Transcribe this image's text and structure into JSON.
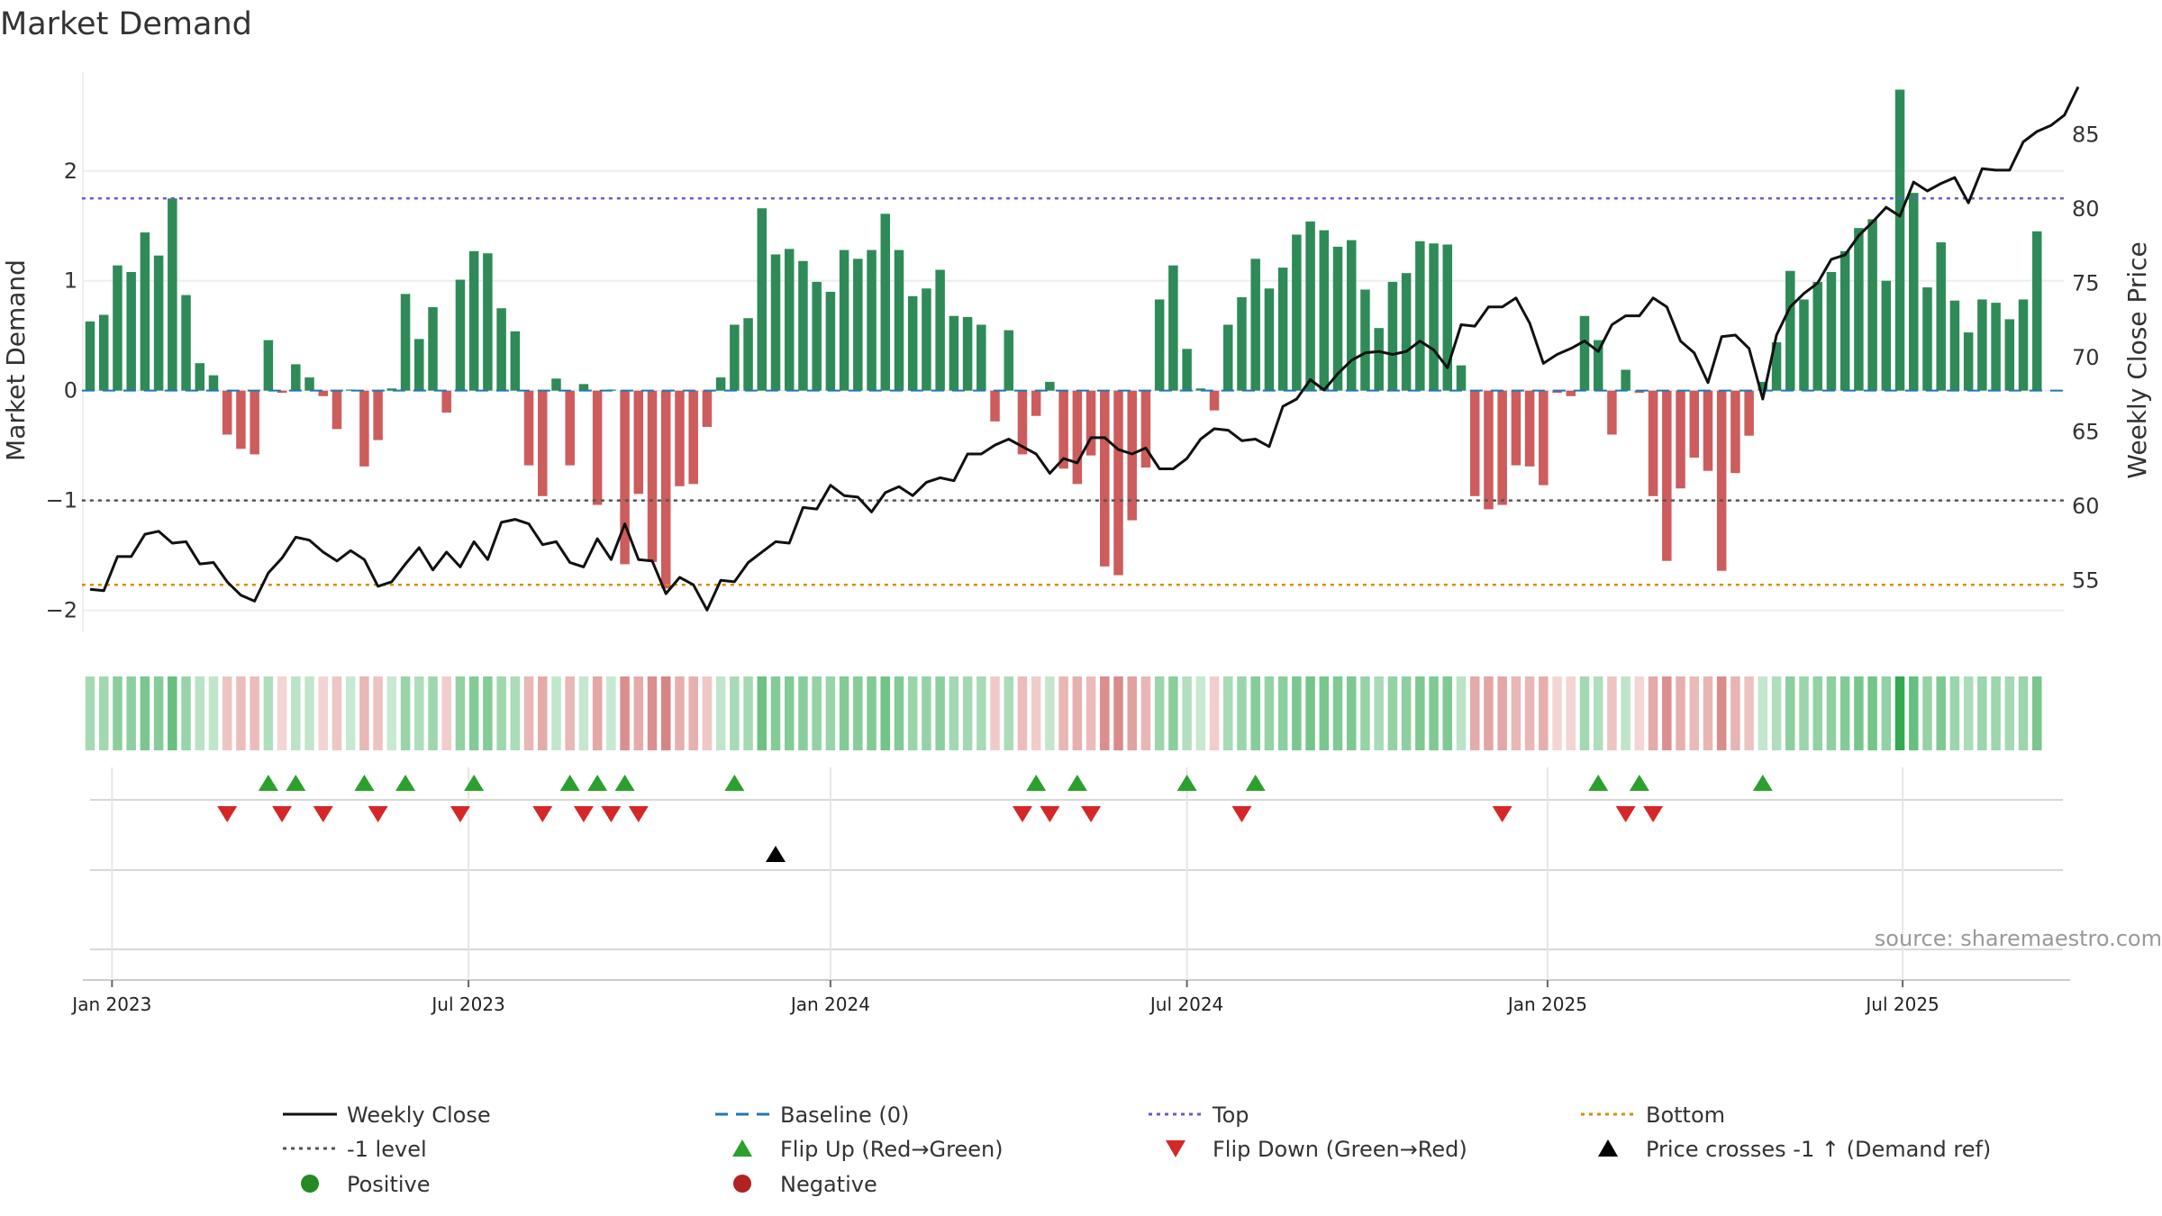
{
  "chart_data": {
    "type": "bar",
    "title": "Market Demand",
    "ylabel_left": "Market Demand",
    "ylabel_right": "Weekly Close Price",
    "source": "source: sharemaestro.com",
    "ylim_left": [
      -2.2,
      2.9
    ],
    "ylim_right": [
      51.5,
      89.2
    ],
    "yticks_left": [
      "−2",
      "−1",
      "0",
      "1",
      "2"
    ],
    "yticks_left_values": [
      -2,
      -1,
      0,
      1,
      2
    ],
    "yticks_right": [
      "55",
      "60",
      "65",
      "70",
      "75",
      "80",
      "85"
    ],
    "yticks_right_values": [
      55,
      60,
      65,
      70,
      75,
      80,
      85
    ],
    "x_ticks": [
      {
        "label": "Jan 2023",
        "week": 1.6
      },
      {
        "label": "Jul 2023",
        "week": 27.6
      },
      {
        "label": "Jan 2024",
        "week": 54.0
      },
      {
        "label": "Jul 2024",
        "week": 80.0
      },
      {
        "label": "Jan 2025",
        "week": 106.3
      },
      {
        "label": "Jul 2025",
        "week": 132.2
      }
    ],
    "x_range_weeks": [
      -0.6,
      144
    ],
    "top_level": 1.75,
    "minus1_level": -1.0,
    "bottom_level_price": 54.7,
    "colors": {
      "positive": "#2e8b57",
      "negative": "#cd5c5c",
      "close": "#111111",
      "baseline": "#1f77b4",
      "top": "#6a5acd",
      "minus1": "#555555",
      "bottom": "#d98c00",
      "flip_up": "#2ca02c",
      "flip_down": "#d62728",
      "cross": "#000000",
      "dot_pos": "#228b22",
      "dot_neg": "#b22222"
    },
    "demand": [
      0.63,
      0.69,
      1.14,
      1.08,
      1.44,
      1.23,
      1.75,
      0.87,
      0.25,
      0.14,
      -0.4,
      -0.53,
      -0.58,
      0.46,
      -0.02,
      0.24,
      0.12,
      -0.05,
      -0.35,
      0.01,
      -0.69,
      -0.45,
      0.02,
      0.88,
      0.47,
      0.76,
      -0.2,
      1.01,
      1.27,
      1.25,
      0.75,
      0.54,
      -0.68,
      -0.96,
      0.11,
      -0.68,
      0.06,
      -1.04,
      0.01,
      -1.58,
      -0.94,
      -1.56,
      -1.8,
      -0.87,
      -0.85,
      -0.33,
      0.12,
      0.6,
      0.66,
      1.66,
      1.24,
      1.29,
      1.18,
      0.99,
      0.9,
      1.28,
      1.2,
      1.28,
      1.61,
      1.28,
      0.86,
      0.93,
      1.1,
      0.68,
      0.67,
      0.6,
      -0.28,
      0.55,
      -0.58,
      -0.23,
      0.08,
      -0.71,
      -0.85,
      -0.59,
      -1.6,
      -1.68,
      -1.18,
      -0.7,
      0.83,
      1.14,
      0.38,
      0.02,
      -0.18,
      0.6,
      0.85,
      1.2,
      0.93,
      1.12,
      1.42,
      1.54,
      1.46,
      1.31,
      1.37,
      0.92,
      0.57,
      0.99,
      1.07,
      1.36,
      1.34,
      1.33,
      0.23,
      -0.96,
      -1.08,
      -1.04,
      -0.68,
      -0.69,
      -0.86,
      -0.02,
      -0.05,
      0.68,
      0.46,
      -0.4,
      0.19,
      -0.02,
      -0.96,
      -1.55,
      -0.89,
      -0.61,
      -0.73,
      -1.64,
      -0.75,
      -0.41,
      0.08,
      0.44,
      1.09,
      0.83,
      0.99,
      1.08,
      1.27,
      1.48,
      1.56,
      1.0,
      2.74,
      1.8,
      0.94,
      1.35,
      0.82,
      0.53,
      0.83,
      0.8,
      0.65,
      0.83,
      1.45
    ],
    "close": [
      54.4,
      54.3,
      56.6,
      56.6,
      58.1,
      58.3,
      57.5,
      57.6,
      56.1,
      56.2,
      54.9,
      54.0,
      53.6,
      55.5,
      56.5,
      57.9,
      57.7,
      56.9,
      56.3,
      57.0,
      56.4,
      54.6,
      54.9,
      56.1,
      57.2,
      55.7,
      56.9,
      55.9,
      57.6,
      56.4,
      58.9,
      59.1,
      58.8,
      57.4,
      57.6,
      56.2,
      55.9,
      57.8,
      56.4,
      58.8,
      56.4,
      56.3,
      54.1,
      55.2,
      54.7,
      53.0,
      55.0,
      54.9,
      56.2,
      56.9,
      57.6,
      57.5,
      59.9,
      59.8,
      61.4,
      60.7,
      60.6,
      59.6,
      60.9,
      61.3,
      60.7,
      61.6,
      61.9,
      61.7,
      63.5,
      63.5,
      64.1,
      64.5,
      64.0,
      63.5,
      62.2,
      63.2,
      62.9,
      64.6,
      64.6,
      63.8,
      63.5,
      63.9,
      62.5,
      62.5,
      63.2,
      64.5,
      65.2,
      65.1,
      64.4,
      64.5,
      64.0,
      66.7,
      67.2,
      68.5,
      67.8,
      68.9,
      69.8,
      70.3,
      70.4,
      70.2,
      70.4,
      71.1,
      70.5,
      69.3,
      72.2,
      72.1,
      73.4,
      73.4,
      74.0,
      72.3,
      69.6,
      70.2,
      70.6,
      71.1,
      70.4,
      72.2,
      72.8,
      72.8,
      74.0,
      73.4,
      71.1,
      70.3,
      68.3,
      71.4,
      71.5,
      70.6,
      67.2,
      71.5,
      73.4,
      74.3,
      75.0,
      76.6,
      76.9,
      78.2,
      79.1,
      80.1,
      79.5,
      81.8,
      81.2,
      81.7,
      82.1,
      80.4,
      82.7,
      82.6,
      82.6,
      84.5,
      85.2,
      85.6,
      86.3,
      88.2
    ],
    "flip_up_weeks": [
      13,
      15,
      20,
      23,
      28,
      35,
      37,
      39,
      47,
      69,
      72,
      80,
      85,
      110,
      113,
      122
    ],
    "flip_down_weeks": [
      10,
      14,
      17,
      21,
      27,
      33,
      36,
      38,
      40,
      68,
      70,
      73,
      84,
      103,
      112,
      114
    ],
    "cross_up_weeks": [
      50
    ],
    "legend": {
      "weekly_close": "Weekly Close",
      "baseline": "Baseline (0)",
      "top": "Top",
      "bottom": "Bottom",
      "minus1": "-1 level",
      "flip_up": "Flip Up (Red→Green)",
      "flip_down": "Flip Down (Green→Red)",
      "cross": "Price crosses -1 ↑ (Demand ref)",
      "positive": "Positive",
      "negative": "Negative"
    }
  }
}
